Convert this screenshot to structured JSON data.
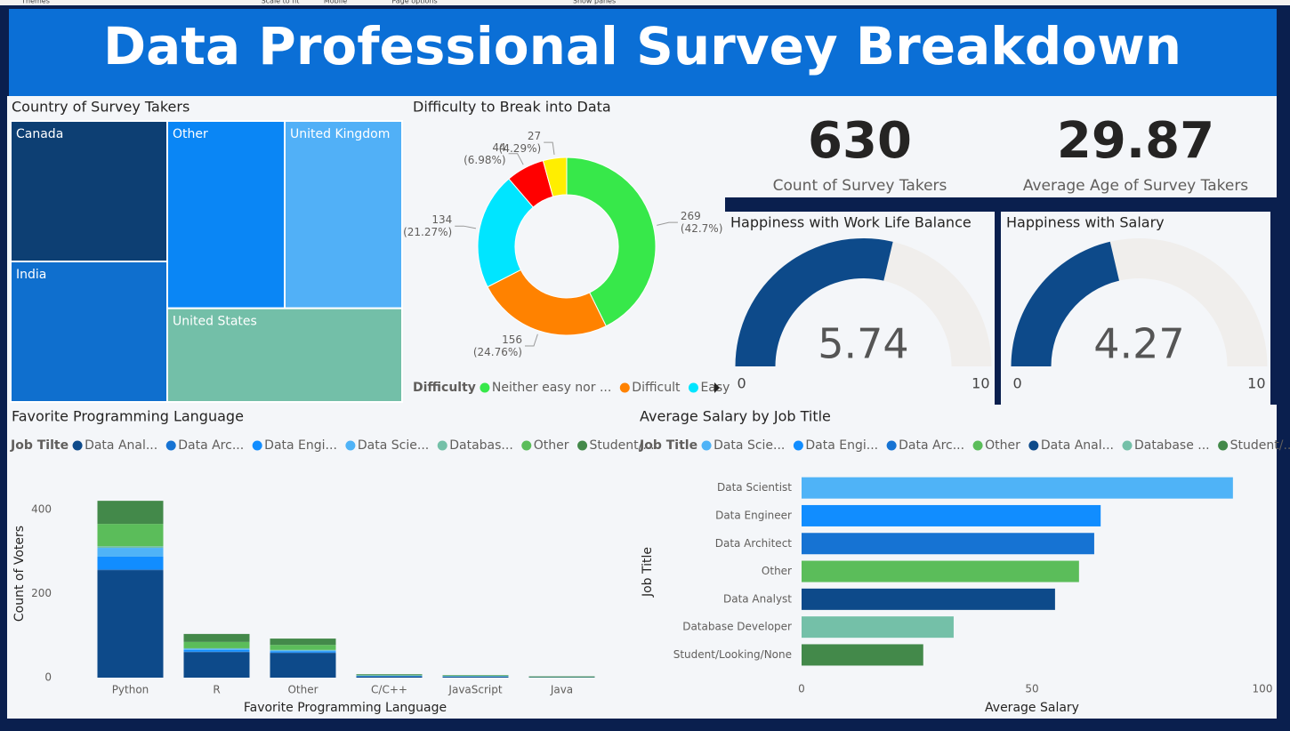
{
  "ribbon": [
    "Themes",
    "Scale to fit",
    "Mobile",
    "Page options",
    "Show panes"
  ],
  "title": "Data Professional Survey Breakdown",
  "chart_data": [
    {
      "type": "treemap",
      "title": "Country of Survey Takers",
      "categories": [
        "Canada",
        "India",
        "Other",
        "United Kingdom",
        "United States"
      ],
      "values": [
        126,
        126,
        126,
        126,
        126
      ],
      "colors": [
        "#0d3f73",
        "#0f6fce",
        "#0a86f5",
        "#51b0f7",
        "#73bfa8"
      ]
    },
    {
      "type": "donut",
      "title": "Difficulty to Break into Data",
      "legend_title": "Difficulty",
      "categories": [
        "Neither easy nor ...",
        "Difficult",
        "Easy",
        null,
        null
      ],
      "values": [
        269,
        156,
        134,
        44,
        27
      ],
      "value_labels": [
        "269 (42.7%)",
        "156 (24.76%)",
        "134 (21.27%)",
        "44 (6.98%)",
        "27 (4.29%)"
      ],
      "colors": [
        "#37e84a",
        "#ff8200",
        "#00e5ff",
        "#ff0000",
        "#ffee00"
      ]
    },
    {
      "type": "card",
      "value": 630,
      "label": "Count of Survey Takers"
    },
    {
      "type": "card",
      "value": 29.87,
      "label": "Average Age of Survey Takers"
    },
    {
      "type": "gauge",
      "title": "Happiness with Work Life Balance",
      "value": 5.74,
      "min": 0,
      "max": 10,
      "color": "#0d4a8a"
    },
    {
      "type": "gauge",
      "title": "Happiness with Salary",
      "value": 4.27,
      "min": 0,
      "max": 10,
      "color": "#0d4a8a"
    },
    {
      "type": "stacked_bar",
      "title": "Favorite Programming Language",
      "legend_title": "Job Tilte",
      "categories": [
        "Python",
        "R",
        "Other",
        "C/C++",
        "JavaScript",
        "Java"
      ],
      "series": [
        {
          "name": "Data Anal...",
          "color": "#0d4a8a",
          "values": [
            256,
            61,
            59,
            3,
            2,
            1
          ]
        },
        {
          "name": "Data Arc...",
          "color": "#1673d3",
          "values": [
            2,
            1,
            1,
            0,
            0,
            0
          ]
        },
        {
          "name": "Data Engi...",
          "color": "#118dff",
          "values": [
            30,
            4,
            3,
            1,
            1,
            0
          ]
        },
        {
          "name": "Data Scie...",
          "color": "#4fb3f7",
          "values": [
            21,
            3,
            2,
            1,
            0,
            0
          ]
        },
        {
          "name": "Databas...",
          "color": "#74c0a8",
          "values": [
            4,
            1,
            1,
            0,
            1,
            0
          ]
        },
        {
          "name": "Other",
          "color": "#5bbd5a",
          "values": [
            53,
            15,
            12,
            1,
            1,
            1
          ]
        },
        {
          "name": "Student/...",
          "color": "#43894a",
          "values": [
            55,
            19,
            15,
            2,
            1,
            1
          ]
        }
      ],
      "ylim": [
        0,
        470
      ],
      "yticks": [
        0,
        200,
        400
      ],
      "xlabel": "Favorite Programming Language",
      "ylabel": "Count of Voters"
    },
    {
      "type": "hbar",
      "title": "Average Salary by Job Title",
      "legend_title": "Job Title",
      "legend": [
        "Data Scie...",
        "Data Engi...",
        "Data Arc...",
        "Other",
        "Data Anal...",
        "Database ...",
        "Student/..."
      ],
      "categories": [
        "Data Scientist",
        "Data Engineer",
        "Data Architect",
        "Other",
        "Data Analyst",
        "Database Developer",
        "Student/Looking/None"
      ],
      "values": [
        93.6,
        64.9,
        63.5,
        60.2,
        55.0,
        33.0,
        26.4
      ],
      "colors": [
        "#4fb3f7",
        "#118dff",
        "#1673d3",
        "#5bbd5a",
        "#0d4a8a",
        "#74c0a8",
        "#43894a"
      ],
      "xlim": [
        0,
        100
      ],
      "xticks": [
        0,
        50,
        100
      ],
      "xlabel": "Average Salary",
      "ylabel": "Job Title"
    }
  ]
}
